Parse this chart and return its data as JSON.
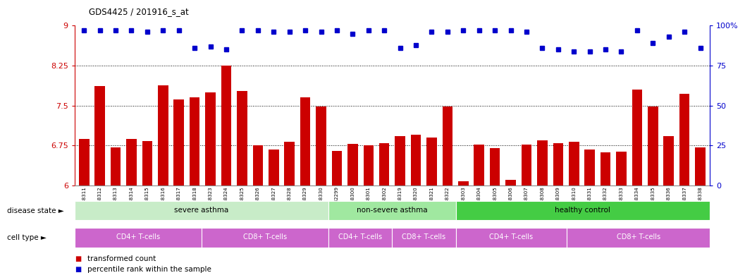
{
  "title": "GDS4425 / 201916_s_at",
  "samples": [
    "GSM788311",
    "GSM788312",
    "GSM788313",
    "GSM788314",
    "GSM788315",
    "GSM788316",
    "GSM788317",
    "GSM788318",
    "GSM788323",
    "GSM788324",
    "GSM788325",
    "GSM788326",
    "GSM788327",
    "GSM788328",
    "GSM788329",
    "GSM788330",
    "GSM7882299",
    "GSM788300",
    "GSM788301",
    "GSM788302",
    "GSM788319",
    "GSM788320",
    "GSM788321",
    "GSM788322",
    "GSM788303",
    "GSM788304",
    "GSM788305",
    "GSM788306",
    "GSM788307",
    "GSM788308",
    "GSM788309",
    "GSM788310",
    "GSM788331",
    "GSM788332",
    "GSM788333",
    "GSM788334",
    "GSM788335",
    "GSM788336",
    "GSM788337",
    "GSM788338"
  ],
  "bar_values": [
    6.88,
    7.87,
    6.72,
    6.88,
    6.83,
    7.88,
    7.62,
    7.65,
    7.75,
    8.25,
    7.78,
    6.75,
    6.68,
    6.82,
    7.65,
    7.48,
    6.65,
    6.78,
    6.75,
    6.8,
    6.92,
    6.95,
    6.9,
    7.48,
    6.08,
    6.77,
    6.7,
    6.1,
    6.77,
    6.85,
    6.8,
    6.82,
    6.67,
    6.62,
    6.63,
    7.8,
    7.48,
    6.92,
    7.72,
    6.72
  ],
  "percentile_values": [
    97,
    97,
    97,
    97,
    96,
    97,
    97,
    86,
    87,
    85,
    97,
    97,
    96,
    96,
    97,
    96,
    97,
    95,
    97,
    97,
    86,
    88,
    96,
    96,
    97,
    97,
    97,
    97,
    96,
    86,
    85,
    84,
    84,
    85,
    84,
    97,
    89,
    93,
    96,
    86
  ],
  "ylim_left": [
    6.0,
    9.0
  ],
  "ylim_right": [
    0,
    100
  ],
  "yticks_left": [
    6.0,
    6.75,
    7.5,
    8.25,
    9.0
  ],
  "ytick_labels_left": [
    "6",
    "6.75",
    "7.5",
    "8.25",
    "9"
  ],
  "yticks_right": [
    0,
    25,
    50,
    75,
    100
  ],
  "ytick_labels_right": [
    "0",
    "25",
    "50",
    "75",
    "100%"
  ],
  "bar_color": "#cc0000",
  "dot_color": "#0000cc",
  "disease_groups": [
    {
      "label": "severe asthma",
      "start": 0,
      "end": 16,
      "color": "#c8ecc8"
    },
    {
      "label": "non-severe asthma",
      "start": 16,
      "end": 24,
      "color": "#a0e8a0"
    },
    {
      "label": "healthy control",
      "start": 24,
      "end": 40,
      "color": "#44cc44"
    }
  ],
  "cell_groups": [
    {
      "label": "CD4+ T-cells",
      "start": 0,
      "end": 8
    },
    {
      "label": "CD8+ T-cells",
      "start": 8,
      "end": 16
    },
    {
      "label": "CD4+ T-cells",
      "start": 16,
      "end": 20
    },
    {
      "label": "CD8+ T-cells",
      "start": 20,
      "end": 24
    },
    {
      "label": "CD4+ T-cells",
      "start": 24,
      "end": 31
    },
    {
      "label": "CD8+ T-cells",
      "start": 31,
      "end": 40
    }
  ],
  "cell_color": "#cc66cc",
  "disease_label": "disease state",
  "cell_label": "cell type",
  "legend_bar_label": "transformed count",
  "legend_dot_label": "percentile rank within the sample",
  "bg_color": "#ffffff"
}
